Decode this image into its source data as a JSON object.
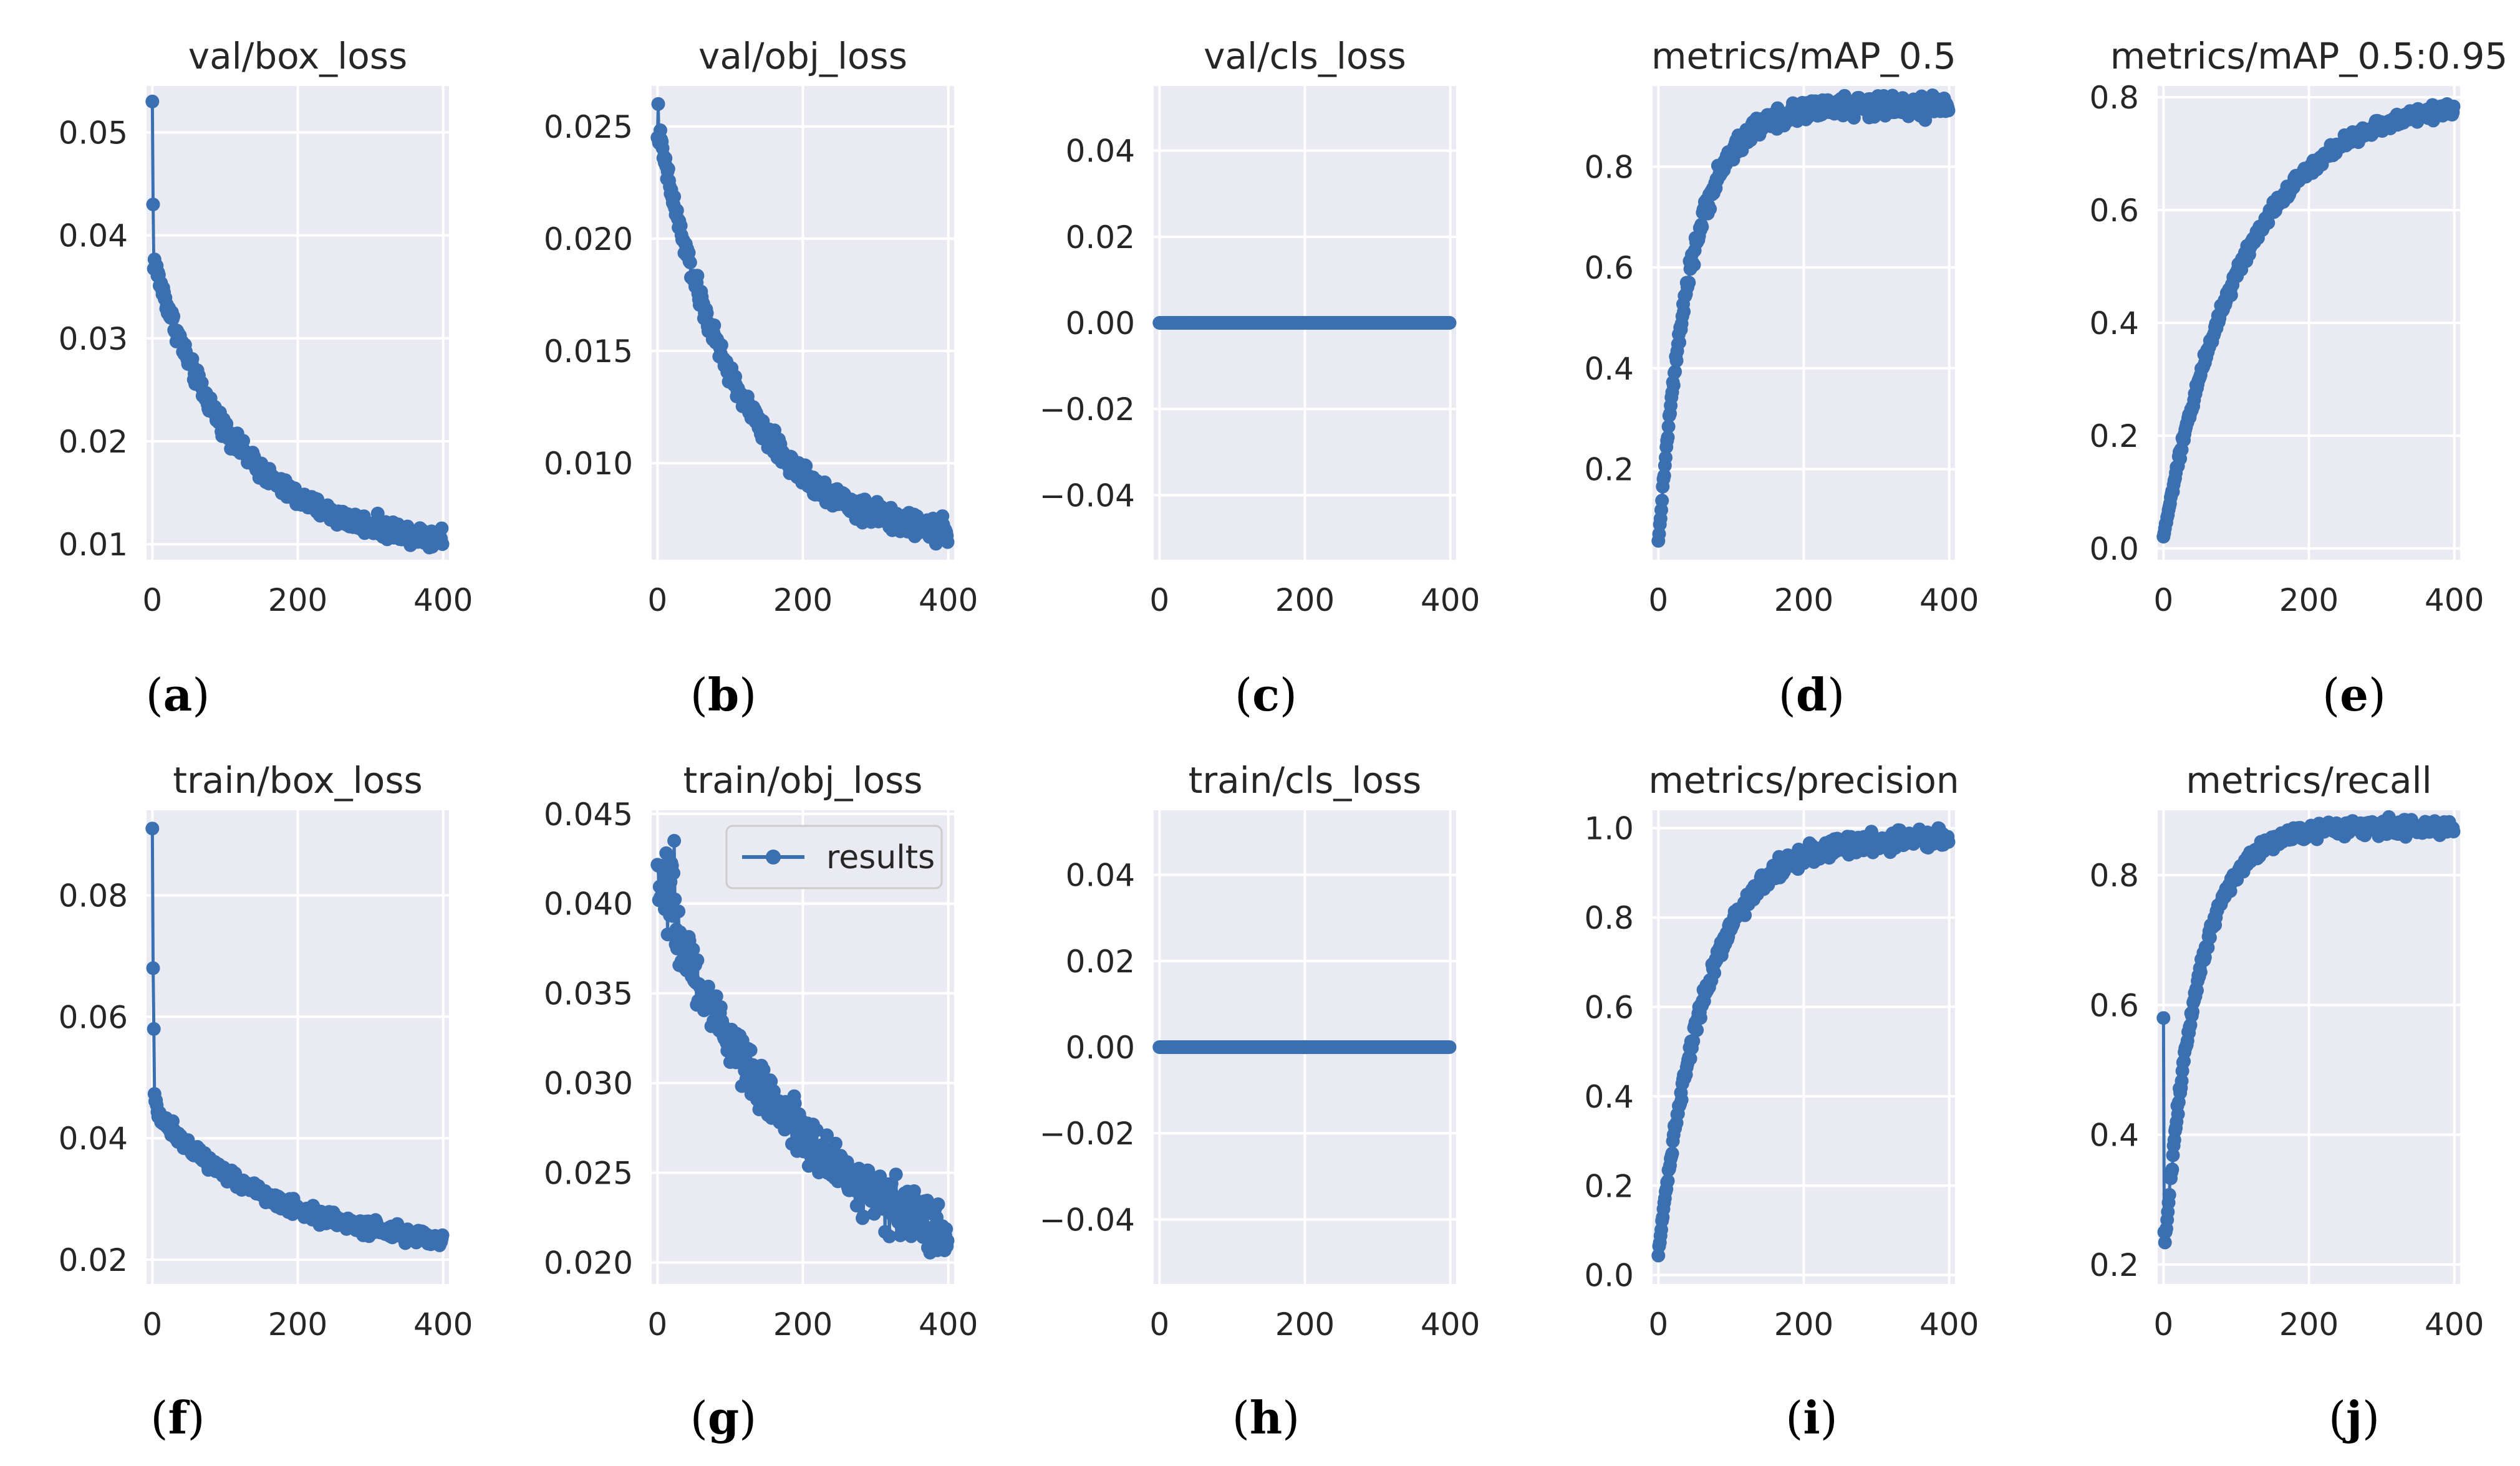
{
  "figure": {
    "colors": {
      "series": "#3a70b2",
      "axes_bg": "#eaeaf2",
      "grid": "#ffffff",
      "text": "#262626"
    },
    "legend": {
      "label": "results",
      "panel": "train/obj_loss",
      "placement": "upper right"
    }
  },
  "chart_data": [
    {
      "type": "line",
      "title": "val/box_loss",
      "panel_label": "a",
      "x": [
        0,
        400
      ],
      "xticks": [
        0,
        200,
        400
      ],
      "xlim": [
        -8,
        408
      ],
      "ylim": [
        0.0085,
        0.0545
      ],
      "yticks": [
        0.01,
        0.02,
        0.03,
        0.04,
        0.05
      ],
      "ytick_labels": [
        "0.01",
        "0.02",
        "0.03",
        "0.04",
        "0.05"
      ],
      "series": [
        {
          "name": "results",
          "shape": "decay",
          "start": 0.053,
          "spike": [
            0.043,
            0.038
          ],
          "end": 0.01,
          "noise": 0.0009
        }
      ]
    },
    {
      "type": "line",
      "title": "val/obj_loss",
      "panel_label": "b",
      "x": [
        0,
        400
      ],
      "xticks": [
        0,
        200,
        400
      ],
      "xlim": [
        -8,
        408
      ],
      "ylim": [
        0.0057,
        0.0268
      ],
      "yticks": [
        0.01,
        0.015,
        0.02,
        0.025
      ],
      "ytick_labels": [
        "0.010",
        "0.015",
        "0.020",
        "0.025"
      ],
      "series": [
        {
          "name": "results",
          "shape": "decay",
          "start": 0.0245,
          "spike": [
            0.026,
            0.025
          ],
          "end": 0.0065,
          "noise": 0.0005
        }
      ]
    },
    {
      "type": "line",
      "title": "val/cls_loss",
      "panel_label": "c",
      "x": [
        0,
        400
      ],
      "xticks": [
        0,
        200,
        400
      ],
      "xlim": [
        -8,
        408
      ],
      "ylim": [
        -0.055,
        0.055
      ],
      "yticks": [
        -0.04,
        -0.02,
        0.0,
        0.02,
        0.04
      ],
      "ytick_labels": [
        "−0.04",
        "−0.02",
        "0.00",
        "0.02",
        "0.04"
      ],
      "series": [
        {
          "name": "results",
          "shape": "flat",
          "value": 0.0
        }
      ]
    },
    {
      "type": "line",
      "title": "metrics/mAP_0.5",
      "panel_label": "d",
      "x": [
        0,
        400
      ],
      "xticks": [
        0,
        200,
        400
      ],
      "xlim": [
        -8,
        408
      ],
      "ylim": [
        0.02,
        0.96
      ],
      "yticks": [
        0.2,
        0.4,
        0.6,
        0.8
      ],
      "ytick_labels": [
        "0.2",
        "0.4",
        "0.6",
        "0.8"
      ],
      "series": [
        {
          "name": "results",
          "shape": "growth",
          "start": 0.05,
          "end": 0.92,
          "rate": 45,
          "noise": 0.02
        }
      ]
    },
    {
      "type": "line",
      "title": "metrics/mAP_0.5:0.95",
      "panel_label": "e",
      "x": [
        0,
        400
      ],
      "xticks": [
        0,
        200,
        400
      ],
      "xlim": [
        -8,
        408
      ],
      "ylim": [
        -0.02,
        0.82
      ],
      "yticks": [
        0.0,
        0.2,
        0.4,
        0.6,
        0.8
      ],
      "ytick_labels": [
        "0.0",
        "0.2",
        "0.4",
        "0.6",
        "0.8"
      ],
      "series": [
        {
          "name": "results",
          "shape": "growth",
          "start": 0.02,
          "end": 0.8,
          "rate": 110,
          "noise": 0.012
        }
      ]
    },
    {
      "type": "line",
      "title": "train/box_loss",
      "panel_label": "f",
      "x": [
        0,
        400
      ],
      "xticks": [
        0,
        200,
        400
      ],
      "xlim": [
        -8,
        408
      ],
      "ylim": [
        0.016,
        0.094
      ],
      "yticks": [
        0.02,
        0.04,
        0.06,
        0.08
      ],
      "ytick_labels": [
        "0.02",
        "0.04",
        "0.06",
        "0.08"
      ],
      "series": [
        {
          "name": "results",
          "shape": "decay2",
          "start": 0.091,
          "spike": [
            0.068,
            0.058
          ],
          "mid": 0.045,
          "end": 0.021,
          "noise": 0.0012
        }
      ]
    },
    {
      "type": "line",
      "title": "train/obj_loss",
      "panel_label": "g",
      "x": [
        0,
        400
      ],
      "xticks": [
        0,
        200,
        400
      ],
      "xlim": [
        -8,
        408
      ],
      "ylim": [
        0.0188,
        0.0452
      ],
      "yticks": [
        0.02,
        0.025,
        0.03,
        0.035,
        0.04,
        0.045
      ],
      "ytick_labels": [
        "0.020",
        "0.025",
        "0.030",
        "0.035",
        "0.040",
        "0.045"
      ],
      "legend": true,
      "series": [
        {
          "name": "results",
          "shape": "linear_noisy",
          "start": 0.041,
          "end": 0.0215,
          "noise": 0.0014
        }
      ]
    },
    {
      "type": "line",
      "title": "train/cls_loss",
      "panel_label": "h",
      "x": [
        0,
        400
      ],
      "xticks": [
        0,
        200,
        400
      ],
      "xlim": [
        -8,
        408
      ],
      "ylim": [
        -0.055,
        0.055
      ],
      "yticks": [
        -0.04,
        -0.02,
        0.0,
        0.02,
        0.04
      ],
      "ytick_labels": [
        "−0.04",
        "−0.02",
        "0.00",
        "0.02",
        "0.04"
      ],
      "series": [
        {
          "name": "results",
          "shape": "flat",
          "value": 0.0
        }
      ]
    },
    {
      "type": "line",
      "title": "metrics/precision",
      "panel_label": "i",
      "x": [
        0,
        400
      ],
      "xticks": [
        0,
        200,
        400
      ],
      "xlim": [
        -8,
        408
      ],
      "ylim": [
        -0.02,
        1.04
      ],
      "yticks": [
        0.0,
        0.2,
        0.4,
        0.6,
        0.8,
        1.0
      ],
      "ytick_labels": [
        "0.0",
        "0.2",
        "0.4",
        "0.6",
        "0.8",
        "1.0"
      ],
      "series": [
        {
          "name": "results",
          "shape": "growth",
          "start": 0.05,
          "end": 0.98,
          "rate": 65,
          "noise": 0.02
        }
      ]
    },
    {
      "type": "line",
      "title": "metrics/recall",
      "panel_label": "j",
      "x": [
        0,
        400
      ],
      "xticks": [
        0,
        200,
        400
      ],
      "xlim": [
        -8,
        408
      ],
      "ylim": [
        0.17,
        0.9
      ],
      "yticks": [
        0.2,
        0.4,
        0.6,
        0.8
      ],
      "ytick_labels": [
        "0.2",
        "0.4",
        "0.6",
        "0.8"
      ],
      "series": [
        {
          "name": "results",
          "shape": "growth_spike",
          "start": 0.2,
          "spike": [
            0.58,
            0.25
          ],
          "end": 0.875,
          "rate": 45,
          "noise": 0.012
        }
      ]
    }
  ]
}
